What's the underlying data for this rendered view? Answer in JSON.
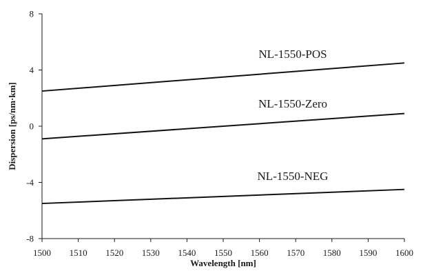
{
  "chart_data": {
    "type": "line",
    "xlabel": "Wavelength [nm]",
    "ylabel": "Dispersion [ps/nm·km]",
    "xlim": [
      1500,
      1600
    ],
    "ylim": [
      -8,
      8
    ],
    "x_ticks": [
      1500,
      1510,
      1520,
      1530,
      1540,
      1550,
      1560,
      1570,
      1580,
      1590,
      1600
    ],
    "y_ticks": [
      -8,
      -4,
      0,
      4,
      8
    ],
    "grid": false,
    "legend": "none",
    "series": [
      {
        "name": "NL-1550-POS",
        "x": [
          1500,
          1600
        ],
        "values": [
          2.5,
          4.5
        ]
      },
      {
        "name": "NL-1550-Zero",
        "x": [
          1500,
          1600
        ],
        "values": [
          -0.9,
          0.9
        ]
      },
      {
        "name": "NL-1550-NEG",
        "x": [
          1500,
          1600
        ],
        "values": [
          -5.5,
          -4.5
        ]
      }
    ],
    "line_color": "#111111"
  }
}
